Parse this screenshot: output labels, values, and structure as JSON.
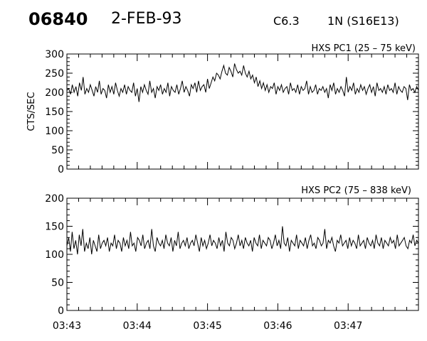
{
  "header": {
    "event_id": "06840",
    "date": "2-FEB-93",
    "goes_class": "C6.3",
    "region": "1N (S16E13)"
  },
  "chart_data": [
    {
      "type": "line",
      "title": "HXS PC1 (25 – 75 keV)",
      "ylabel": "CTS/SEC",
      "xlabel": "",
      "x_range": [
        "03:43:00",
        "03:48:00"
      ],
      "ylim": [
        0,
        300
      ],
      "yticks": [
        0,
        50,
        100,
        150,
        200,
        250,
        300
      ],
      "series": [
        {
          "values": [
            205,
            210,
            195,
            220,
            200,
            215,
            190,
            225,
            205,
            240,
            195,
            210,
            200,
            220,
            205,
            190,
            215,
            200,
            230,
            195,
            210,
            205,
            185,
            220,
            200,
            215,
            195,
            225,
            205,
            190,
            210,
            200,
            220,
            195,
            215,
            205,
            200,
            225,
            190,
            210,
            175,
            215,
            200,
            220,
            205,
            195,
            230,
            200,
            210,
            185,
            215,
            205,
            220,
            195,
            210,
            200,
            225,
            190,
            215,
            205,
            200,
            220,
            195,
            210,
            230,
            200,
            215,
            205,
            190,
            220,
            210,
            225,
            200,
            230,
            205,
            215,
            220,
            200,
            235,
            210,
            225,
            240,
            230,
            250,
            245,
            235,
            255,
            270,
            250,
            245,
            265,
            255,
            240,
            275,
            260,
            250,
            255,
            245,
            270,
            250,
            240,
            255,
            235,
            245,
            225,
            240,
            215,
            230,
            210,
            225,
            205,
            220,
            200,
            215,
            210,
            225,
            195,
            215,
            205,
            220,
            200,
            210,
            215,
            195,
            225,
            205,
            210,
            200,
            220,
            195,
            215,
            205,
            210,
            230,
            195,
            215,
            200,
            205,
            220,
            195,
            210,
            205,
            215,
            200,
            210,
            185,
            220,
            205,
            225,
            195,
            210,
            200,
            215,
            205,
            190,
            240,
            200,
            215,
            205,
            225,
            195,
            210,
            200,
            220,
            205,
            215,
            195,
            210,
            220,
            200,
            215,
            190,
            225,
            205,
            210,
            200,
            215,
            195,
            220,
            205,
            210,
            200,
            225,
            195,
            215,
            205,
            200,
            215,
            210,
            180,
            220,
            205,
            210,
            200,
            215,
            205
          ],
          "color": "#000000"
        }
      ],
      "grid": false
    },
    {
      "type": "line",
      "title": "HXS PC2 (75 – 838 keV)",
      "ylabel": "",
      "xlabel": "",
      "x_range": [
        "03:43:00",
        "03:48:00"
      ],
      "ylim": [
        0,
        200
      ],
      "yticks": [
        0,
        50,
        100,
        150,
        200
      ],
      "xticks": [
        "03:43",
        "03:44",
        "03:45",
        "03:46",
        "03:47"
      ],
      "series": [
        {
          "values": [
            115,
            130,
            105,
            140,
            110,
            125,
            100,
            135,
            115,
            145,
            105,
            120,
            110,
            130,
            100,
            125,
            115,
            105,
            135,
            110,
            120,
            125,
            115,
            130,
            105,
            120,
            115,
            135,
            110,
            125,
            120,
            105,
            130,
            115,
            125,
            110,
            140,
            115,
            120,
            105,
            130,
            125,
            115,
            135,
            110,
            120,
            125,
            110,
            145,
            115,
            105,
            130,
            120,
            115,
            125,
            110,
            135,
            120,
            115,
            130,
            105,
            125,
            115,
            140,
            110,
            120,
            125,
            115,
            130,
            110,
            120,
            125,
            115,
            135,
            120,
            105,
            130,
            115,
            125,
            110,
            120,
            135,
            115,
            125,
            120,
            110,
            130,
            115,
            125,
            105,
            140,
            120,
            115,
            130,
            125,
            110,
            120,
            135,
            115,
            125,
            110,
            130,
            120,
            115,
            125,
            105,
            130,
            120,
            115,
            135,
            110,
            125,
            120,
            115,
            130,
            125,
            110,
            120,
            135,
            115,
            125,
            110,
            150,
            120,
            115,
            130,
            105,
            125,
            120,
            115,
            135,
            110,
            125,
            120,
            115,
            130,
            110,
            125,
            135,
            115,
            120,
            110,
            130,
            125,
            115,
            120,
            145,
            110,
            125,
            120,
            130,
            115,
            105,
            125,
            120,
            135,
            115,
            120,
            125,
            110,
            130,
            115,
            125,
            120,
            110,
            135,
            115,
            120,
            125,
            110,
            130,
            120,
            115,
            125,
            110,
            135,
            120,
            115,
            130,
            110,
            125,
            120,
            115,
            130,
            120,
            125,
            110,
            135,
            115,
            120,
            125,
            130,
            115,
            110,
            125,
            120,
            135,
            115,
            125,
            120
          ],
          "color": "#000000"
        }
      ],
      "grid": false
    }
  ]
}
